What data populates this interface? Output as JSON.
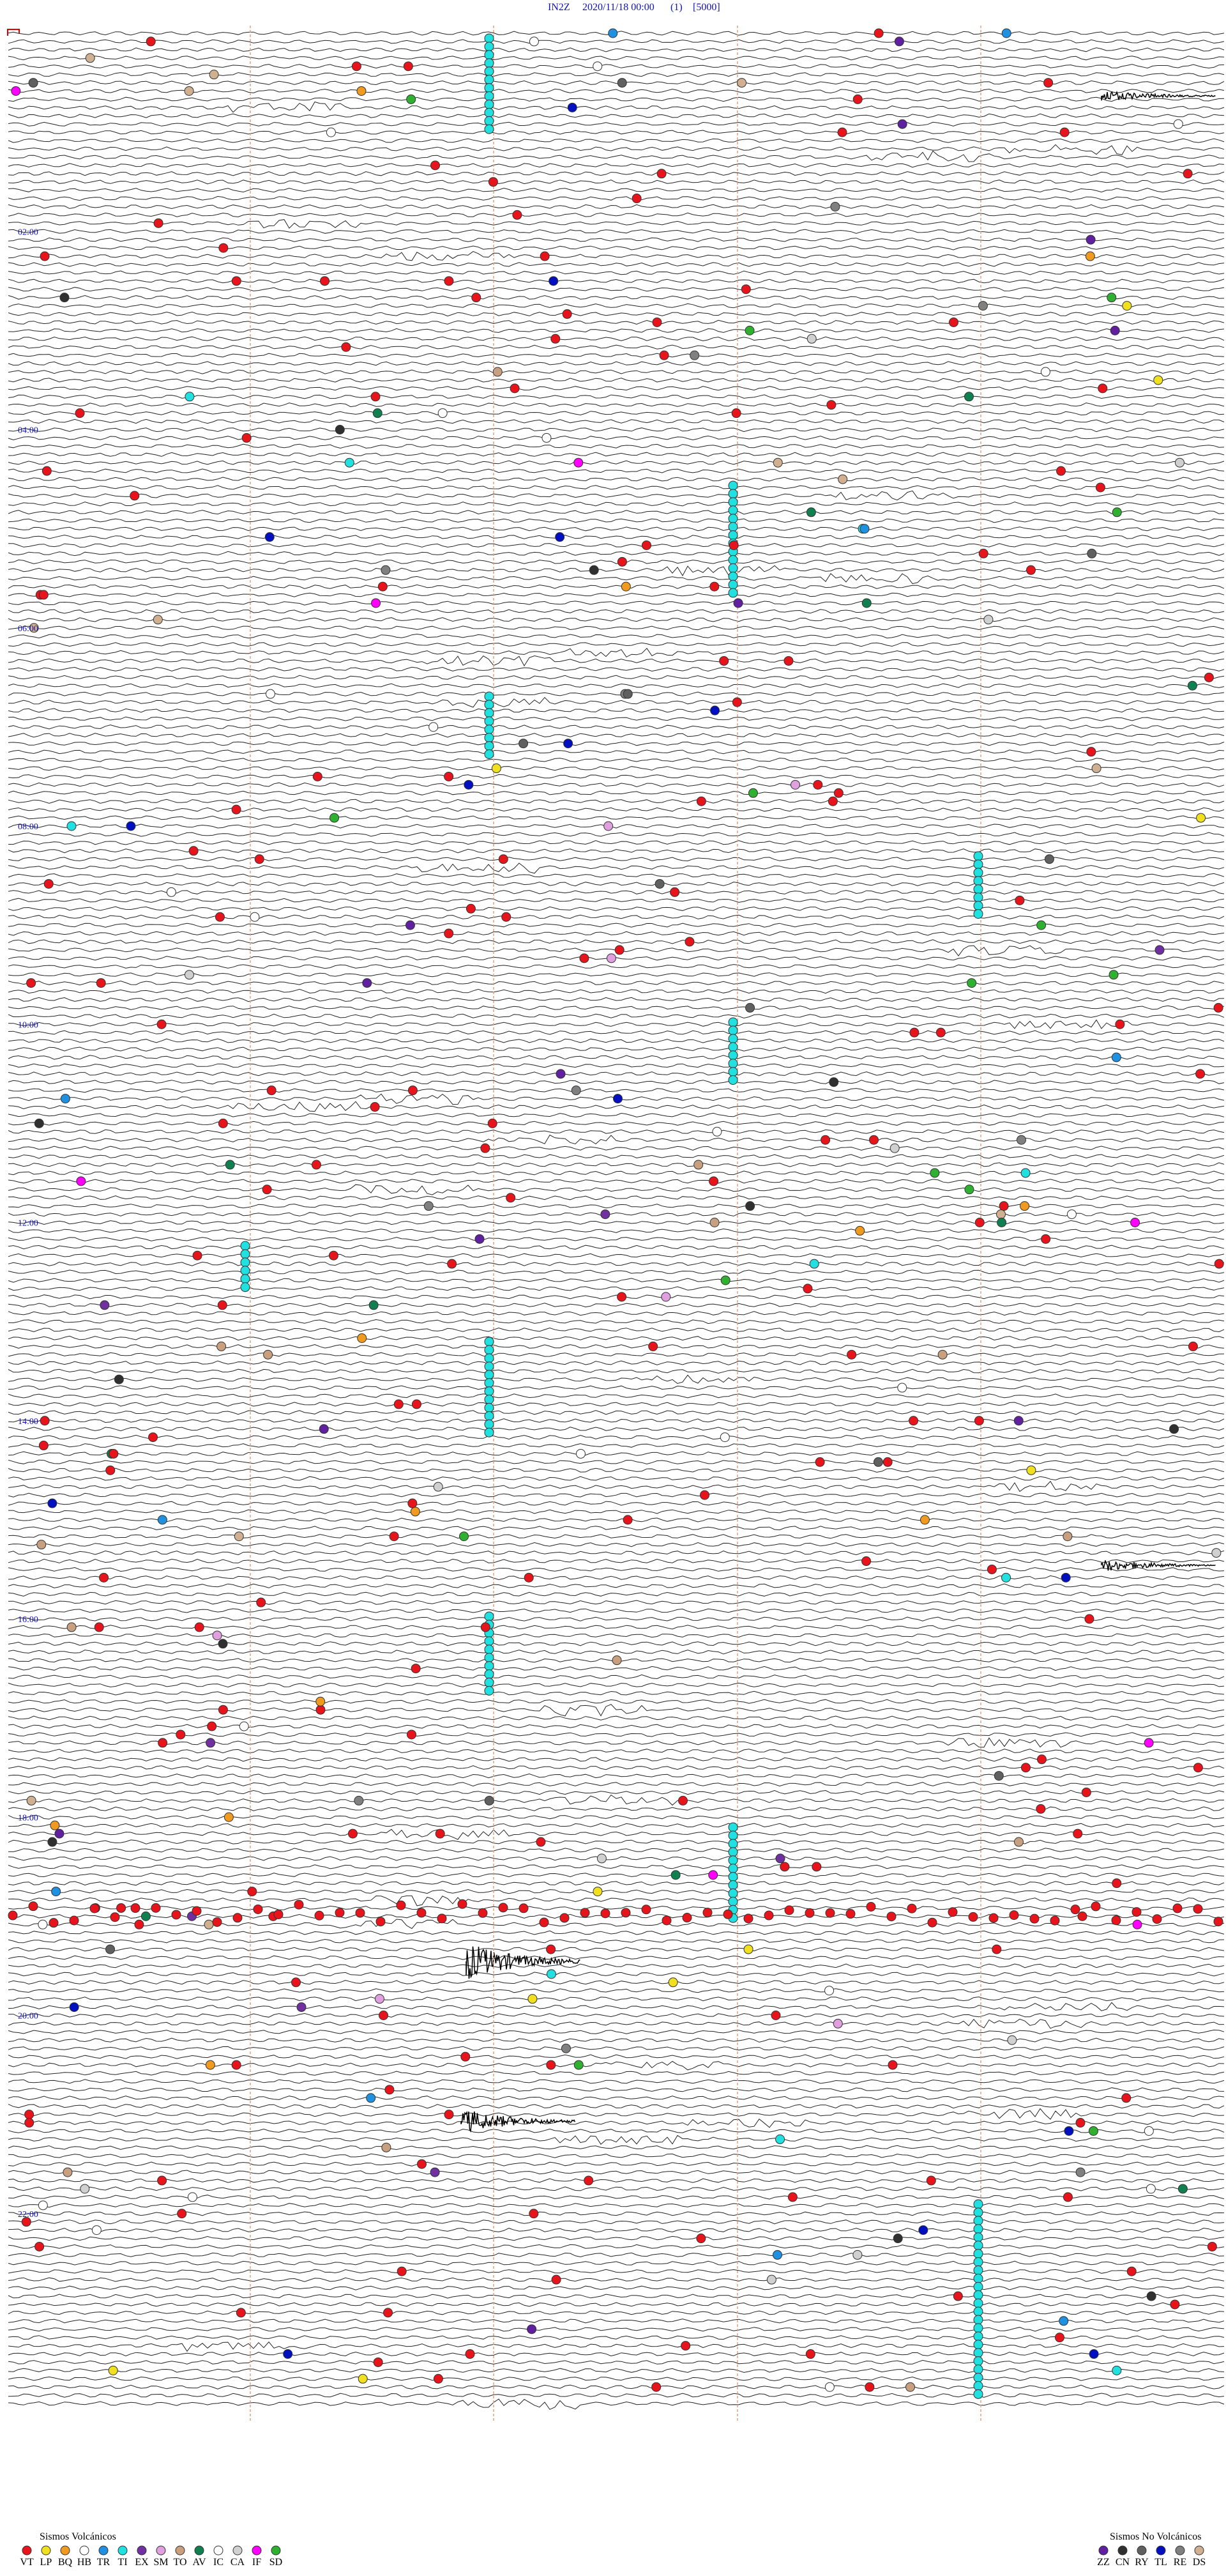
{
  "header": {
    "station": "IN2Z",
    "datetime": "2020/11/18 00:00",
    "index": "(1)",
    "scale": "[5000]"
  },
  "time_labels": [
    "02:00",
    "04:00",
    "06:00",
    "08:00",
    "10:00",
    "12:00",
    "14:00",
    "16:00",
    "18:00",
    "20:00",
    "22:00"
  ],
  "legend": {
    "volcanic": {
      "title": "Sismos Volcánicos",
      "items": [
        {
          "code": "VT",
          "color": "#e8141c"
        },
        {
          "code": "LP",
          "color": "#f0e020"
        },
        {
          "code": "BQ",
          "color": "#f09a20"
        },
        {
          "code": "HB",
          "color": "#ffffff"
        },
        {
          "code": "TR",
          "color": "#2090e0"
        },
        {
          "code": "TI",
          "color": "#20e0e0"
        },
        {
          "code": "EX",
          "color": "#7030a0"
        },
        {
          "code": "SM",
          "color": "#e0a0e0"
        },
        {
          "code": "TO",
          "color": "#c8a080"
        },
        {
          "code": "AV",
          "color": "#108050"
        },
        {
          "code": "IC",
          "color": "#ffffff"
        },
        {
          "code": "CA",
          "color": "#d0d0d0"
        },
        {
          "code": "IF",
          "color": "#ff00ff"
        },
        {
          "code": "SD",
          "color": "#30b030"
        }
      ]
    },
    "non_volcanic": {
      "title": "Sismos No Volcánicos",
      "items": [
        {
          "code": "ZZ",
          "color": "#6020a0"
        },
        {
          "code": "CN",
          "color": "#303030"
        },
        {
          "code": "RY",
          "color": "#606060"
        },
        {
          "code": "TL",
          "color": "#0010c0"
        },
        {
          "code": "RE",
          "color": "#808080"
        },
        {
          "code": "DS",
          "color": "#d0b090"
        }
      ]
    }
  }
}
